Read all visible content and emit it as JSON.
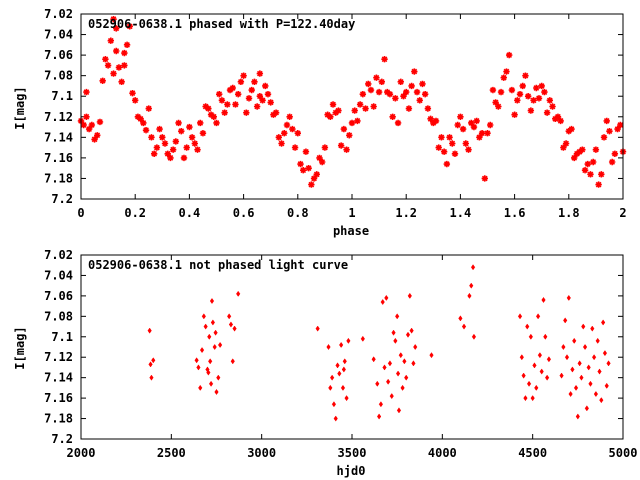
{
  "chart_data": [
    {
      "type": "scatter",
      "title": "052906-0638.1 phased with P=122.40day",
      "xlabel": "phase",
      "ylabel": "I[mag]",
      "xlim": [
        0,
        2
      ],
      "ylim": [
        7.2,
        7.02
      ],
      "y_inverted": true,
      "grid": false,
      "xticks": [
        "0",
        "0.2",
        "0.4",
        "0.6",
        "0.8",
        "1",
        "1.2",
        "1.4",
        "1.6",
        "1.8",
        "2"
      ],
      "yticks": [
        "7.02",
        "7.04",
        "7.06",
        "7.08",
        "7.1",
        "7.12",
        "7.14",
        "7.16",
        "7.18",
        "7.2"
      ],
      "marker": "star",
      "color": "#ff0000",
      "points": [
        [
          0.0,
          7.124
        ],
        [
          0.01,
          7.128
        ],
        [
          0.02,
          7.12
        ],
        [
          0.02,
          7.096
        ],
        [
          0.03,
          7.132
        ],
        [
          0.04,
          7.128
        ],
        [
          0.05,
          7.142
        ],
        [
          0.06,
          7.138
        ],
        [
          0.07,
          7.125
        ],
        [
          0.08,
          7.085
        ],
        [
          0.09,
          7.064
        ],
        [
          0.1,
          7.07
        ],
        [
          0.11,
          7.046
        ],
        [
          0.12,
          7.078
        ],
        [
          0.12,
          7.025
        ],
        [
          0.13,
          7.034
        ],
        [
          0.13,
          7.056
        ],
        [
          0.14,
          7.072
        ],
        [
          0.15,
          7.086
        ],
        [
          0.16,
          7.058
        ],
        [
          0.16,
          7.07
        ],
        [
          0.17,
          7.05
        ],
        [
          0.18,
          7.032
        ],
        [
          0.19,
          7.097
        ],
        [
          0.2,
          7.104
        ],
        [
          0.21,
          7.12
        ],
        [
          0.22,
          7.122
        ],
        [
          0.23,
          7.126
        ],
        [
          0.24,
          7.133
        ],
        [
          0.25,
          7.112
        ],
        [
          0.26,
          7.14
        ],
        [
          0.27,
          7.156
        ],
        [
          0.28,
          7.15
        ],
        [
          0.29,
          7.132
        ],
        [
          0.3,
          7.14
        ],
        [
          0.31,
          7.146
        ],
        [
          0.32,
          7.156
        ],
        [
          0.33,
          7.16
        ],
        [
          0.34,
          7.152
        ],
        [
          0.35,
          7.144
        ],
        [
          0.36,
          7.126
        ],
        [
          0.37,
          7.134
        ],
        [
          0.38,
          7.16
        ],
        [
          0.39,
          7.15
        ],
        [
          0.4,
          7.13
        ],
        [
          0.41,
          7.14
        ],
        [
          0.42,
          7.146
        ],
        [
          0.43,
          7.152
        ],
        [
          0.44,
          7.126
        ],
        [
          0.45,
          7.136
        ],
        [
          0.46,
          7.11
        ],
        [
          0.47,
          7.112
        ],
        [
          0.48,
          7.118
        ],
        [
          0.49,
          7.12
        ],
        [
          0.5,
          7.126
        ],
        [
          0.51,
          7.098
        ],
        [
          0.52,
          7.104
        ],
        [
          0.53,
          7.116
        ],
        [
          0.54,
          7.108
        ],
        [
          0.55,
          7.094
        ],
        [
          0.56,
          7.092
        ],
        [
          0.57,
          7.108
        ],
        [
          0.58,
          7.098
        ],
        [
          0.59,
          7.086
        ],
        [
          0.6,
          7.08
        ],
        [
          0.61,
          7.116
        ],
        [
          0.62,
          7.102
        ],
        [
          0.63,
          7.094
        ],
        [
          0.64,
          7.086
        ],
        [
          0.65,
          7.11
        ],
        [
          0.66,
          7.1
        ],
        [
          0.66,
          7.078
        ],
        [
          0.67,
          7.104
        ],
        [
          0.68,
          7.09
        ],
        [
          0.69,
          7.098
        ],
        [
          0.7,
          7.106
        ],
        [
          0.71,
          7.118
        ],
        [
          0.72,
          7.116
        ],
        [
          0.73,
          7.14
        ],
        [
          0.74,
          7.146
        ],
        [
          0.75,
          7.136
        ],
        [
          0.76,
          7.128
        ],
        [
          0.77,
          7.12
        ],
        [
          0.78,
          7.132
        ],
        [
          0.79,
          7.15
        ],
        [
          0.8,
          7.136
        ],
        [
          0.81,
          7.166
        ],
        [
          0.82,
          7.172
        ],
        [
          0.83,
          7.154
        ],
        [
          0.84,
          7.17
        ],
        [
          0.85,
          7.186
        ],
        [
          0.86,
          7.18
        ],
        [
          0.87,
          7.176
        ],
        [
          0.88,
          7.16
        ],
        [
          0.89,
          7.164
        ],
        [
          0.9,
          7.15
        ],
        [
          0.91,
          7.118
        ],
        [
          0.92,
          7.12
        ],
        [
          0.93,
          7.108
        ],
        [
          0.94,
          7.116
        ],
        [
          0.95,
          7.114
        ],
        [
          0.96,
          7.148
        ],
        [
          0.97,
          7.132
        ],
        [
          0.98,
          7.152
        ],
        [
          0.99,
          7.138
        ],
        [
          1.0,
          7.126
        ],
        [
          1.01,
          7.114
        ],
        [
          1.02,
          7.124
        ],
        [
          1.03,
          7.108
        ],
        [
          1.04,
          7.098
        ],
        [
          1.05,
          7.112
        ],
        [
          1.06,
          7.088
        ],
        [
          1.07,
          7.094
        ],
        [
          1.08,
          7.11
        ],
        [
          1.09,
          7.082
        ],
        [
          1.1,
          7.096
        ],
        [
          1.11,
          7.086
        ],
        [
          1.12,
          7.064
        ],
        [
          1.13,
          7.096
        ],
        [
          1.14,
          7.098
        ],
        [
          1.15,
          7.12
        ],
        [
          1.16,
          7.102
        ],
        [
          1.17,
          7.126
        ],
        [
          1.18,
          7.086
        ],
        [
          1.19,
          7.1
        ],
        [
          1.2,
          7.096
        ],
        [
          1.21,
          7.112
        ],
        [
          1.22,
          7.09
        ],
        [
          1.23,
          7.076
        ],
        [
          1.24,
          7.096
        ],
        [
          1.25,
          7.104
        ],
        [
          1.26,
          7.088
        ],
        [
          1.27,
          7.098
        ],
        [
          1.28,
          7.112
        ],
        [
          1.29,
          7.122
        ],
        [
          1.3,
          7.126
        ],
        [
          1.31,
          7.124
        ],
        [
          1.32,
          7.15
        ],
        [
          1.33,
          7.14
        ],
        [
          1.34,
          7.154
        ],
        [
          1.35,
          7.166
        ],
        [
          1.36,
          7.14
        ],
        [
          1.37,
          7.146
        ],
        [
          1.38,
          7.156
        ],
        [
          1.39,
          7.128
        ],
        [
          1.4,
          7.12
        ],
        [
          1.41,
          7.132
        ],
        [
          1.42,
          7.146
        ],
        [
          1.43,
          7.152
        ],
        [
          1.44,
          7.126
        ],
        [
          1.45,
          7.13
        ],
        [
          1.46,
          7.124
        ],
        [
          1.47,
          7.14
        ],
        [
          1.48,
          7.136
        ],
        [
          1.49,
          7.18
        ],
        [
          1.5,
          7.136
        ],
        [
          1.51,
          7.128
        ],
        [
          1.52,
          7.094
        ],
        [
          1.53,
          7.106
        ],
        [
          1.54,
          7.11
        ],
        [
          1.55,
          7.096
        ],
        [
          1.56,
          7.082
        ],
        [
          1.57,
          7.076
        ],
        [
          1.58,
          7.06
        ],
        [
          1.59,
          7.094
        ],
        [
          1.6,
          7.118
        ],
        [
          1.61,
          7.104
        ],
        [
          1.62,
          7.098
        ],
        [
          1.63,
          7.09
        ],
        [
          1.64,
          7.08
        ],
        [
          1.65,
          7.1
        ],
        [
          1.66,
          7.114
        ],
        [
          1.67,
          7.104
        ],
        [
          1.68,
          7.092
        ],
        [
          1.69,
          7.102
        ],
        [
          1.7,
          7.09
        ],
        [
          1.71,
          7.096
        ],
        [
          1.72,
          7.116
        ],
        [
          1.73,
          7.104
        ],
        [
          1.74,
          7.11
        ],
        [
          1.75,
          7.122
        ],
        [
          1.76,
          7.12
        ],
        [
          1.77,
          7.124
        ],
        [
          1.78,
          7.15
        ],
        [
          1.79,
          7.146
        ],
        [
          1.8,
          7.134
        ],
        [
          1.81,
          7.132
        ],
        [
          1.82,
          7.16
        ],
        [
          1.83,
          7.156
        ],
        [
          1.84,
          7.154
        ],
        [
          1.85,
          7.152
        ],
        [
          1.86,
          7.172
        ],
        [
          1.87,
          7.166
        ],
        [
          1.88,
          7.176
        ],
        [
          1.89,
          7.164
        ],
        [
          1.9,
          7.152
        ],
        [
          1.91,
          7.186
        ],
        [
          1.92,
          7.176
        ],
        [
          1.93,
          7.14
        ],
        [
          1.94,
          7.124
        ],
        [
          1.95,
          7.134
        ],
        [
          1.96,
          7.164
        ],
        [
          1.97,
          7.156
        ],
        [
          1.98,
          7.132
        ],
        [
          1.99,
          7.128
        ],
        [
          2.0,
          7.154
        ]
      ]
    },
    {
      "type": "scatter",
      "title": "052906-0638.1 not phased light curve",
      "xlabel": "hjd0",
      "ylabel": "I[mag]",
      "xlim": [
        2000,
        5000
      ],
      "ylim": [
        7.2,
        7.02
      ],
      "y_inverted": true,
      "grid": false,
      "xticks": [
        "2000",
        "2500",
        "3000",
        "3500",
        "4000",
        "4500",
        "5000"
      ],
      "yticks": [
        "7.02",
        "7.04",
        "7.06",
        "7.08",
        "7.1",
        "7.12",
        "7.14",
        "7.16",
        "7.18",
        "7.2"
      ],
      "marker": "diamond",
      "color": "#ff0000",
      "points": [
        [
          2380,
          7.094
        ],
        [
          2385,
          7.127
        ],
        [
          2390,
          7.14
        ],
        [
          2400,
          7.123
        ],
        [
          2640,
          7.123
        ],
        [
          2650,
          7.13
        ],
        [
          2660,
          7.15
        ],
        [
          2670,
          7.113
        ],
        [
          2680,
          7.08
        ],
        [
          2690,
          7.09
        ],
        [
          2700,
          7.132
        ],
        [
          2705,
          7.135
        ],
        [
          2710,
          7.1
        ],
        [
          2715,
          7.124
        ],
        [
          2720,
          7.146
        ],
        [
          2725,
          7.065
        ],
        [
          2730,
          7.086
        ],
        [
          2740,
          7.11
        ],
        [
          2745,
          7.096
        ],
        [
          2750,
          7.154
        ],
        [
          2760,
          7.14
        ],
        [
          2770,
          7.108
        ],
        [
          2820,
          7.08
        ],
        [
          2830,
          7.088
        ],
        [
          2840,
          7.124
        ],
        [
          2850,
          7.092
        ],
        [
          2870,
          7.058
        ],
        [
          3310,
          7.092
        ],
        [
          3370,
          7.11
        ],
        [
          3380,
          7.15
        ],
        [
          3390,
          7.14
        ],
        [
          3400,
          7.166
        ],
        [
          3410,
          7.18
        ],
        [
          3420,
          7.128
        ],
        [
          3430,
          7.136
        ],
        [
          3440,
          7.108
        ],
        [
          3450,
          7.15
        ],
        [
          3455,
          7.132
        ],
        [
          3460,
          7.124
        ],
        [
          3470,
          7.16
        ],
        [
          3480,
          7.104
        ],
        [
          3560,
          7.102
        ],
        [
          3620,
          7.122
        ],
        [
          3640,
          7.146
        ],
        [
          3650,
          7.178
        ],
        [
          3660,
          7.166
        ],
        [
          3670,
          7.066
        ],
        [
          3680,
          7.13
        ],
        [
          3690,
          7.062
        ],
        [
          3700,
          7.144
        ],
        [
          3710,
          7.126
        ],
        [
          3720,
          7.158
        ],
        [
          3730,
          7.096
        ],
        [
          3740,
          7.104
        ],
        [
          3750,
          7.08
        ],
        [
          3755,
          7.136
        ],
        [
          3760,
          7.172
        ],
        [
          3770,
          7.118
        ],
        [
          3780,
          7.15
        ],
        [
          3790,
          7.124
        ],
        [
          3800,
          7.14
        ],
        [
          3810,
          7.098
        ],
        [
          3820,
          7.06
        ],
        [
          3830,
          7.094
        ],
        [
          3840,
          7.126
        ],
        [
          3850,
          7.11
        ],
        [
          3940,
          7.118
        ],
        [
          4100,
          7.082
        ],
        [
          4120,
          7.09
        ],
        [
          4150,
          7.06
        ],
        [
          4160,
          7.05
        ],
        [
          4170,
          7.032
        ],
        [
          4175,
          7.1
        ],
        [
          4430,
          7.08
        ],
        [
          4440,
          7.12
        ],
        [
          4450,
          7.138
        ],
        [
          4460,
          7.16
        ],
        [
          4470,
          7.09
        ],
        [
          4480,
          7.146
        ],
        [
          4490,
          7.1
        ],
        [
          4500,
          7.16
        ],
        [
          4510,
          7.128
        ],
        [
          4520,
          7.15
        ],
        [
          4530,
          7.08
        ],
        [
          4540,
          7.118
        ],
        [
          4550,
          7.134
        ],
        [
          4560,
          7.064
        ],
        [
          4570,
          7.1
        ],
        [
          4580,
          7.14
        ],
        [
          4590,
          7.122
        ],
        [
          4660,
          7.138
        ],
        [
          4670,
          7.11
        ],
        [
          4680,
          7.084
        ],
        [
          4690,
          7.12
        ],
        [
          4700,
          7.062
        ],
        [
          4710,
          7.156
        ],
        [
          4720,
          7.132
        ],
        [
          4730,
          7.104
        ],
        [
          4740,
          7.15
        ],
        [
          4750,
          7.178
        ],
        [
          4760,
          7.126
        ],
        [
          4770,
          7.14
        ],
        [
          4780,
          7.09
        ],
        [
          4790,
          7.11
        ],
        [
          4800,
          7.17
        ],
        [
          4810,
          7.13
        ],
        [
          4820,
          7.146
        ],
        [
          4830,
          7.092
        ],
        [
          4840,
          7.12
        ],
        [
          4850,
          7.156
        ],
        [
          4860,
          7.104
        ],
        [
          4870,
          7.134
        ],
        [
          4880,
          7.162
        ],
        [
          4890,
          7.086
        ],
        [
          4900,
          7.116
        ],
        [
          4910,
          7.148
        ],
        [
          4920,
          7.126
        ]
      ]
    }
  ]
}
